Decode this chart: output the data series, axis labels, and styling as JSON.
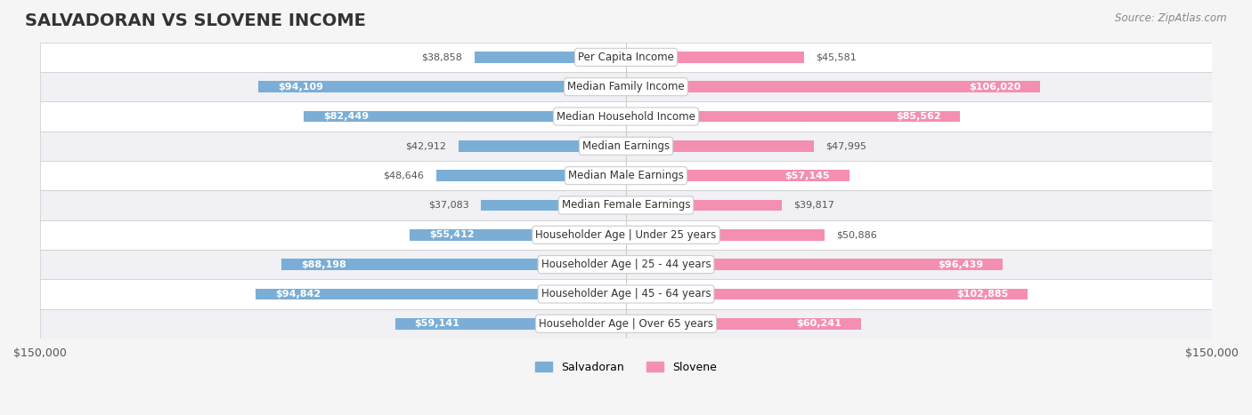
{
  "title": "SALVADORAN VS SLOVENE INCOME",
  "source": "Source: ZipAtlas.com",
  "categories": [
    "Per Capita Income",
    "Median Family Income",
    "Median Household Income",
    "Median Earnings",
    "Median Male Earnings",
    "Median Female Earnings",
    "Householder Age | Under 25 years",
    "Householder Age | 25 - 44 years",
    "Householder Age | 45 - 64 years",
    "Householder Age | Over 65 years"
  ],
  "salvadoran": [
    38858,
    94109,
    82449,
    42912,
    48646,
    37083,
    55412,
    88198,
    94842,
    59141
  ],
  "slovene": [
    45581,
    106020,
    85562,
    47995,
    57145,
    39817,
    50886,
    96439,
    102885,
    60241
  ],
  "salvadoran_color": "#7aaed6",
  "slovene_color": "#f48fb1",
  "max_val": 150000,
  "bg_color": "#f0f0f0",
  "row_bg": "#f8f8f8",
  "row_alt_bg": "#eeeeee",
  "label_fontsize": 9,
  "title_fontsize": 14,
  "axis_label": "$150,000",
  "legend_salvadoran": "Salvadoran",
  "legend_slovene": "Slovene"
}
